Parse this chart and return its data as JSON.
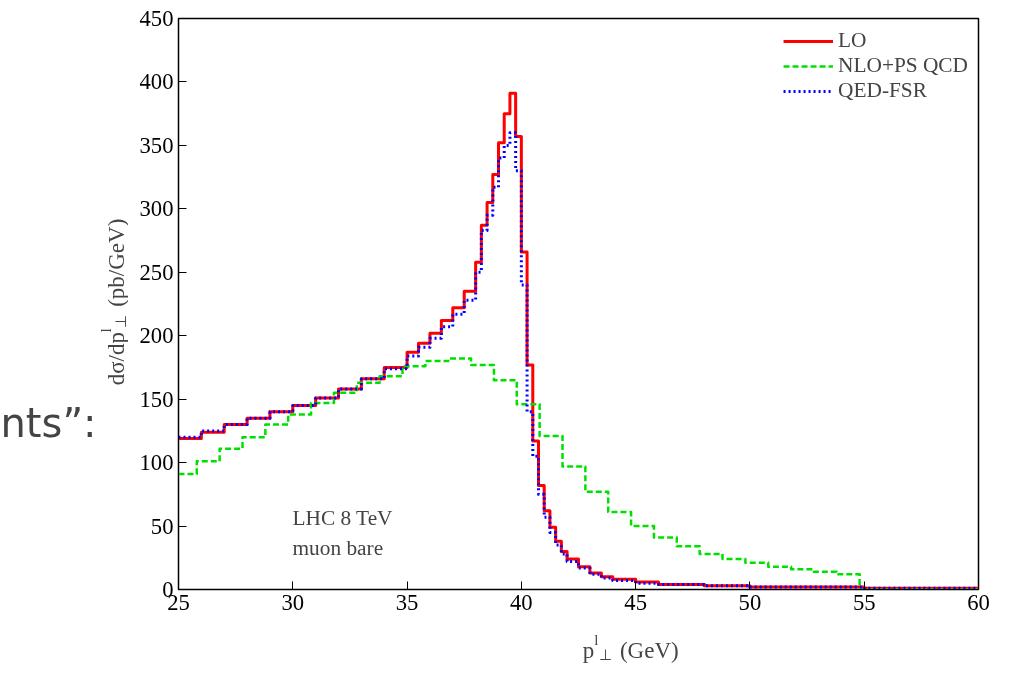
{
  "chart_data": {
    "type": "step",
    "xlabel": "p$^{l}$$_{⊥}$ (GeV)",
    "ylabel": "dσ/dp$^{l}$$_{⊥}$ (pb/GeV)",
    "xlim": [
      25,
      60
    ],
    "ylim": [
      0,
      450
    ],
    "xticks": [
      25,
      30,
      35,
      40,
      45,
      50,
      55,
      60
    ],
    "yticks": [
      0,
      50,
      100,
      150,
      200,
      250,
      300,
      350,
      400,
      450
    ],
    "grid": false,
    "legend": "top right",
    "marker": "none",
    "annotations": [
      "LHC 8 TeV",
      "muon bare",
      "nts”:"
    ],
    "series": [
      {
        "name": "LO",
        "color": "#ff0000",
        "line_style": "solid",
        "x": [
          25,
          26,
          27,
          28,
          29,
          30,
          31,
          32,
          33,
          34,
          35,
          35.5,
          36,
          36.5,
          37,
          37.5,
          38,
          38.25,
          38.5,
          38.75,
          39,
          39.25,
          39.5,
          39.75,
          40,
          40.25,
          40.5,
          40.75,
          41,
          41.25,
          41.5,
          41.75,
          42,
          42.5,
          43,
          43.5,
          44,
          45,
          46,
          48,
          50,
          55,
          60
        ],
        "values": [
          119,
          124,
          130,
          135,
          140,
          145,
          151,
          158,
          166,
          175,
          187,
          194,
          202,
          212,
          222,
          235,
          258,
          287,
          305,
          327,
          352,
          375,
          391,
          357,
          266,
          177,
          117,
          82,
          62,
          49,
          38,
          30,
          24,
          18,
          13,
          10,
          8,
          6,
          4,
          3,
          2,
          1,
          1
        ]
      },
      {
        "name": "NLO+PS QCD",
        "color": "#00e000",
        "line_style": "dashed",
        "x": [
          25,
          25.8,
          26.8,
          27.8,
          28.8,
          29.8,
          30.8,
          31.8,
          32.8,
          33.8,
          34.8,
          35.8,
          36.8,
          37.8,
          38.8,
          39.8,
          40.8,
          41.8,
          42.8,
          43.8,
          44.8,
          45.8,
          46.8,
          47.8,
          48.8,
          49.8,
          50.8,
          51.8,
          52.8,
          53.8,
          54.8,
          60
        ],
        "values": [
          91,
          101,
          111,
          120,
          130,
          138,
          147,
          155,
          163,
          168,
          176,
          180,
          182,
          177,
          165,
          146,
          121,
          97,
          77,
          61,
          50,
          41,
          34,
          28,
          24,
          21,
          18,
          16,
          14,
          12,
          0,
          0
        ]
      },
      {
        "name": "QED-FSR",
        "color": "#0000ff",
        "line_style": "dotted",
        "x": [
          25,
          26,
          27,
          28,
          29,
          30,
          31,
          32,
          33,
          34,
          35,
          35.5,
          36,
          36.5,
          37,
          37.5,
          38,
          38.25,
          38.5,
          38.75,
          39,
          39.25,
          39.5,
          39.75,
          40,
          40.25,
          40.5,
          40.75,
          41,
          41.25,
          41.5,
          41.75,
          42,
          42.5,
          43,
          43.5,
          44,
          45,
          46,
          48,
          50,
          55,
          60
        ],
        "values": [
          120,
          125,
          130,
          135,
          140,
          145,
          151,
          158,
          166,
          174,
          184,
          191,
          198,
          207,
          217,
          228,
          250,
          283,
          295,
          317,
          340,
          350,
          360,
          330,
          240,
          140,
          105,
          75,
          57,
          45,
          35,
          28,
          22,
          17,
          12,
          9,
          7,
          5,
          4,
          3,
          2,
          1,
          1
        ]
      }
    ]
  }
}
